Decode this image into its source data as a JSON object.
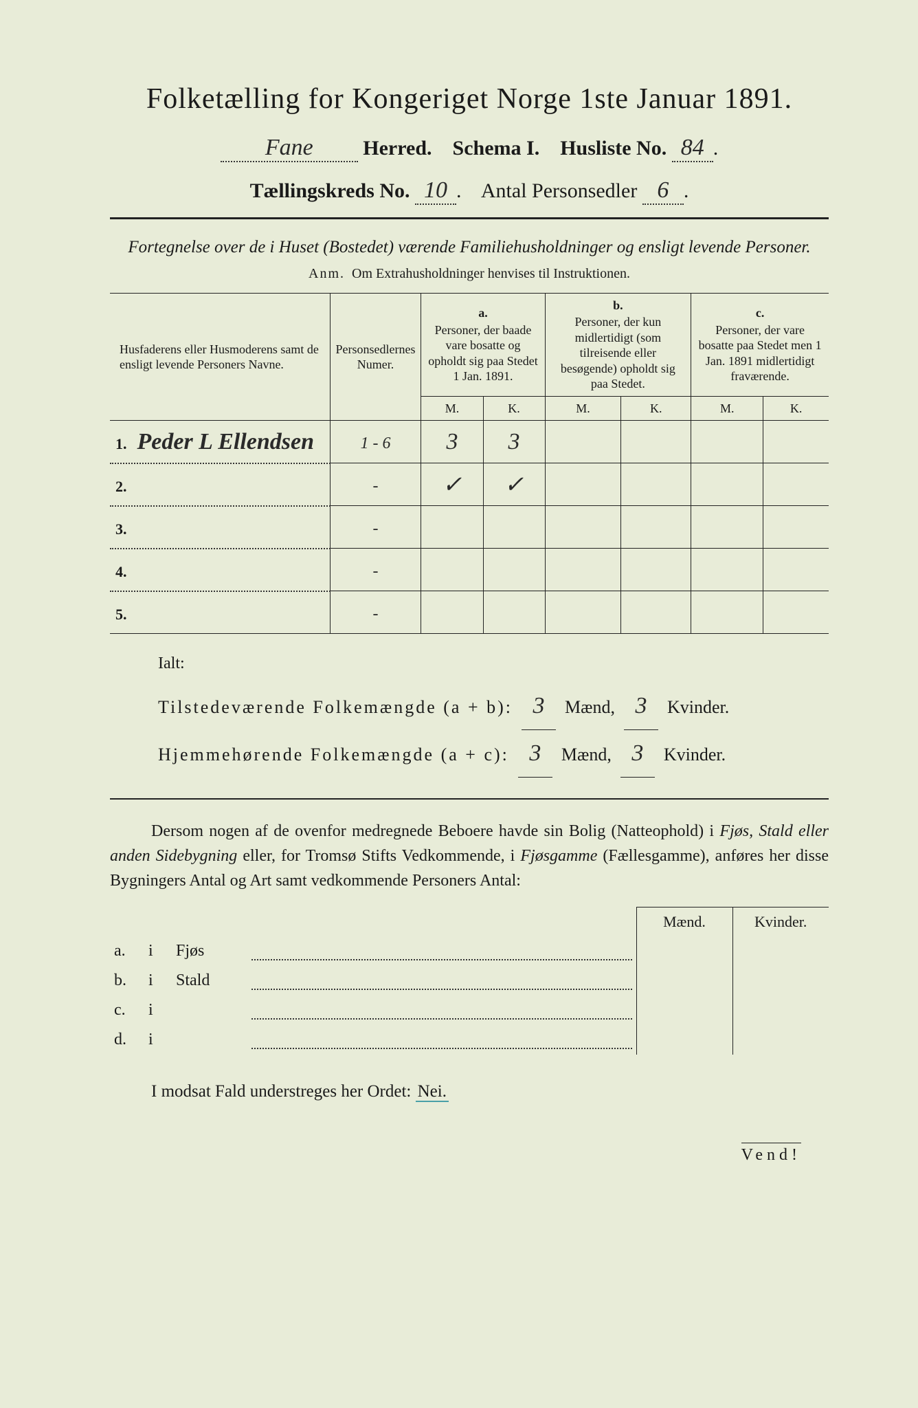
{
  "title": "Folketælling for Kongeriget Norge 1ste Januar 1891.",
  "line2": {
    "herred_value": "Fane",
    "herred_label": "Herred.",
    "schema_label": "Schema I.",
    "husliste_label": "Husliste No.",
    "husliste_value": "84"
  },
  "line3": {
    "kreds_label": "Tællingskreds No.",
    "kreds_value": "10",
    "antal_label": "Antal Personsedler",
    "antal_value": "6"
  },
  "subtitle": "Fortegnelse over de i Huset (Bostedet) værende Familiehusholdninger og ensligt levende Personer.",
  "anm_label": "Anm.",
  "anm_text": "Om Extrahusholdninger henvises til Instruktionen.",
  "table": {
    "col1_header": "Husfaderens eller Husmoderens samt de ensligt levende Personers Navne.",
    "col2_header": "Personsedlernes Numer.",
    "col_a_label": "a.",
    "col_a_header": "Personer, der baade vare bosatte og opholdt sig paa Stedet 1 Jan. 1891.",
    "col_b_label": "b.",
    "col_b_header": "Personer, der kun midlertidigt (som tilreisende eller besøgende) opholdt sig paa Stedet.",
    "col_c_label": "c.",
    "col_c_header": "Personer, der vare bosatte paa Stedet men 1 Jan. 1891 midlertidigt fraværende.",
    "m_label": "M.",
    "k_label": "K.",
    "rows": [
      {
        "n": "1.",
        "name": "Peder L Ellendsen",
        "num": "1 - 6",
        "a_m": "3",
        "a_k": "3",
        "b_m": "",
        "b_k": "",
        "c_m": "",
        "c_k": ""
      },
      {
        "n": "2.",
        "name": "",
        "num": "-",
        "a_m": "✓",
        "a_k": "✓",
        "b_m": "",
        "b_k": "",
        "c_m": "",
        "c_k": ""
      },
      {
        "n": "3.",
        "name": "",
        "num": "-",
        "a_m": "",
        "a_k": "",
        "b_m": "",
        "b_k": "",
        "c_m": "",
        "c_k": ""
      },
      {
        "n": "4.",
        "name": "",
        "num": "-",
        "a_m": "",
        "a_k": "",
        "b_m": "",
        "b_k": "",
        "c_m": "",
        "c_k": ""
      },
      {
        "n": "5.",
        "name": "",
        "num": "-",
        "a_m": "",
        "a_k": "",
        "b_m": "",
        "b_k": "",
        "c_m": "",
        "c_k": ""
      }
    ]
  },
  "ialt": {
    "label": "Ialt:",
    "tilstede_label": "Tilstedeværende Folkemængde (a + b):",
    "hjemme_label": "Hjemmehørende Folkemængde (a + c):",
    "maend_label": "Mænd,",
    "kvinder_label": "Kvinder.",
    "tilstede_m": "3",
    "tilstede_k": "3",
    "hjemme_m": "3",
    "hjemme_k": "3"
  },
  "para": {
    "p1": "Dersom nogen af de ovenfor medregnede Beboere havde sin Bolig (Natteophold) i ",
    "i1": "Fjøs, Stald eller anden Sidebygning",
    "p2": " eller, for Tromsø Stifts Vedkommende, i ",
    "i2": "Fjøsgamme",
    "p3": " (Fællesgamme), anføres her disse Bygningers Antal og Art samt vedkommende Personers Antal:"
  },
  "abcd": {
    "maend": "Mænd.",
    "kvinder": "Kvinder.",
    "rows": [
      {
        "l": "a.",
        "i": "i",
        "t": "Fjøs"
      },
      {
        "l": "b.",
        "i": "i",
        "t": "Stald"
      },
      {
        "l": "c.",
        "i": "i",
        "t": ""
      },
      {
        "l": "d.",
        "i": "i",
        "t": ""
      }
    ]
  },
  "nei_line": "I modsat Fald understreges her Ordet:",
  "nei_word": "Nei.",
  "vend": "Vend!",
  "colors": {
    "paper": "#e8ecd8",
    "ink": "#1a1a1a",
    "underline_accent": "#4aa0a8"
  }
}
